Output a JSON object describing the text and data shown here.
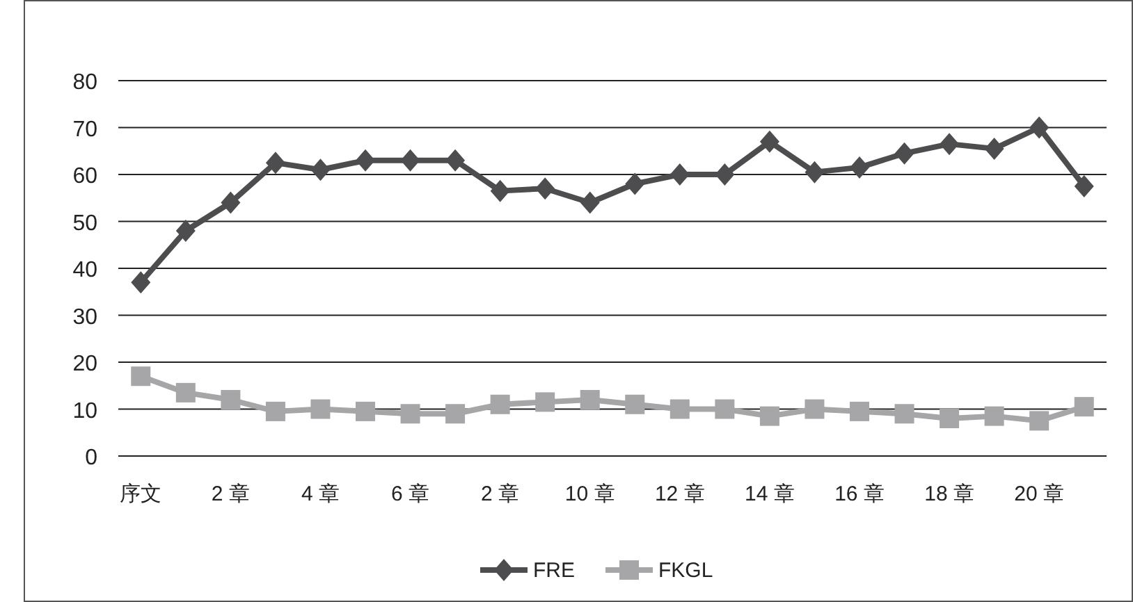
{
  "chart_data": {
    "type": "line",
    "categories": [
      "序文",
      null,
      "2 章",
      null,
      "4 章",
      null,
      "6 章",
      null,
      "2 章",
      null,
      "10 章",
      null,
      "12 章",
      null,
      "14 章",
      null,
      "16 章",
      null,
      "18 章",
      null,
      "20 章",
      null
    ],
    "series": [
      {
        "name": "FRE",
        "color": "#4d4d4f",
        "marker": "diamond",
        "values": [
          37,
          48,
          54,
          62.5,
          61,
          63,
          63,
          63,
          56.5,
          57,
          54,
          58,
          60,
          60,
          67,
          60.5,
          61.5,
          64.5,
          66.5,
          65.5,
          70,
          57.5
        ]
      },
      {
        "name": "FKGL",
        "color": "#a6a6a8",
        "marker": "square",
        "values": [
          17,
          13.5,
          12,
          9.5,
          10,
          9.5,
          9,
          9,
          11,
          11.5,
          12,
          11,
          10,
          10,
          8.5,
          10,
          9.5,
          9,
          8,
          8.5,
          7.5,
          10.5
        ]
      }
    ],
    "ylim": [
      0,
      80
    ],
    "yticks": [
      0,
      10,
      20,
      30,
      40,
      50,
      60,
      70,
      80
    ],
    "grid": "y",
    "legend": "bottom",
    "line_style": "solid"
  }
}
